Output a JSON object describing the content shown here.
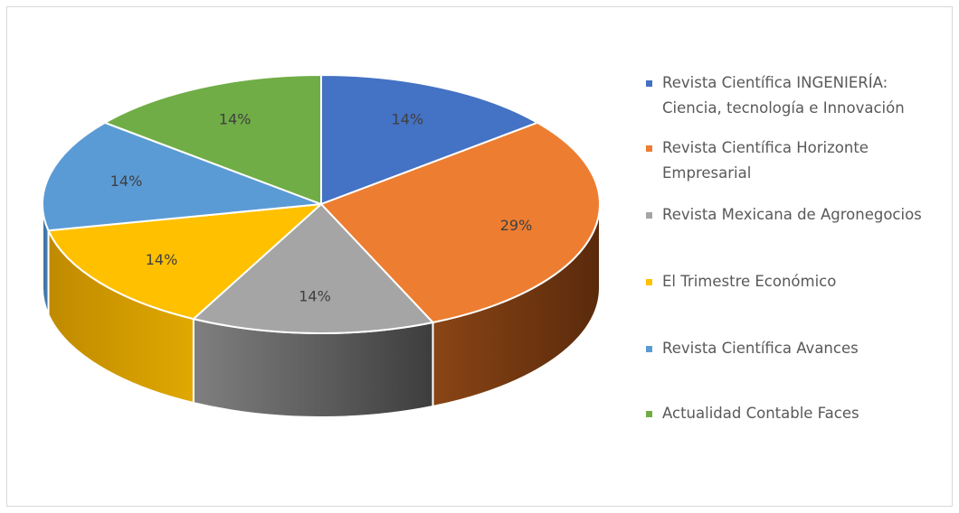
{
  "chart_data": {
    "type": "pie",
    "title": "",
    "values": [
      14,
      29,
      14,
      14,
      14,
      14
    ],
    "labels": [
      "14%",
      "29%",
      "14%",
      "14%",
      "14%",
      "14%"
    ],
    "categories": [
      "Revista Científica INGENIERÍA: Ciencia, tecnología e Innovación",
      "Revista Científica Horizonte Empresarial",
      "Revista Mexicana de Agronegocios",
      "El Trimestre Económico",
      "Revista Científica Avances",
      "Actualidad Contable Faces"
    ],
    "colors": [
      "#4472c4",
      "#ed7d31",
      "#a5a5a5",
      "#ffc000",
      "#5b9bd5",
      "#70ad47"
    ],
    "style": "3d-pie",
    "legend": "right"
  },
  "legend": {
    "items": [
      {
        "label": "Revista Científica INGENIERÍA: Ciencia, tecnología e Innovación",
        "color": "#4472c4"
      },
      {
        "label": "Revista Científica Horizonte Empresarial",
        "color": "#ed7d31"
      },
      {
        "label": "Revista Mexicana de Agronegocios",
        "color": "#a5a5a5"
      },
      {
        "label": "El Trimestre Económico",
        "color": "#ffc000"
      },
      {
        "label": "Revista Científica Avances",
        "color": "#5b9bd5"
      },
      {
        "label": "Actualidad Contable Faces",
        "color": "#70ad47"
      }
    ]
  }
}
